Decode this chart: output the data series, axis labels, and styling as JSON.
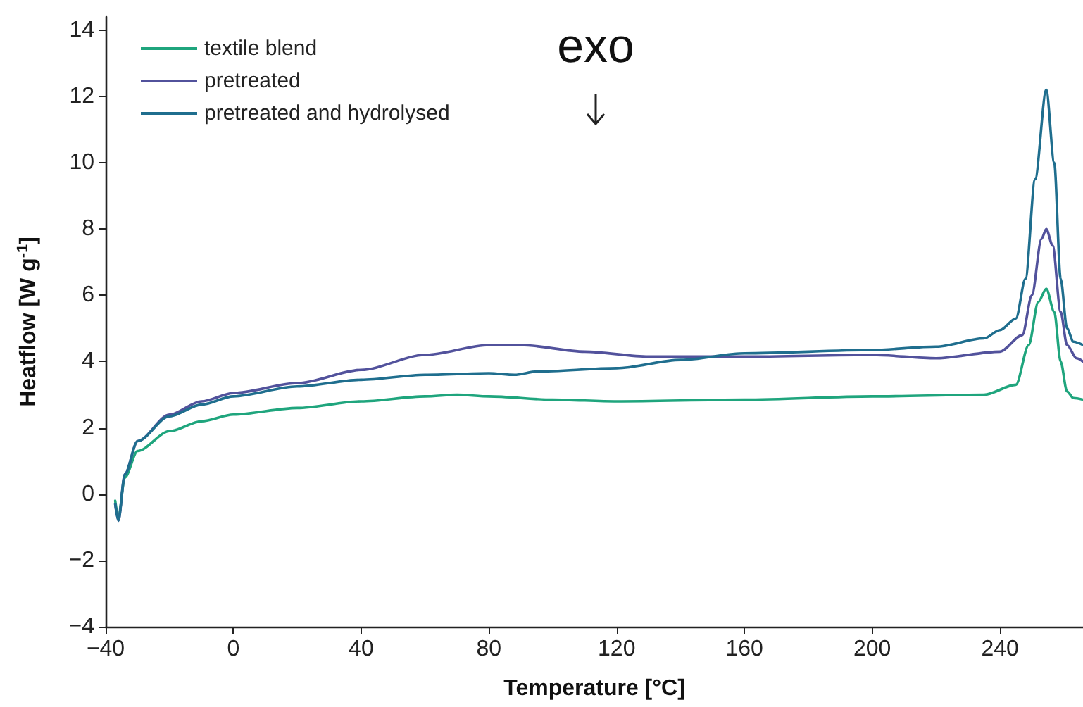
{
  "chart_data": {
    "type": "line",
    "xlabel": "Temperature [°C]",
    "ylabel": "Heatflow [W g$^{-1}$]",
    "annotations": [
      "exo"
    ],
    "xlim": [
      -40,
      266
    ],
    "xticks": [
      -40,
      0,
      40,
      80,
      120,
      160,
      200,
      240
    ],
    "ylim": [
      -4,
      14.4
    ],
    "yticks": [
      -4,
      -2,
      0,
      2,
      4,
      6,
      8,
      10,
      12,
      14
    ],
    "grid": false,
    "legend": "top left",
    "marker": "none",
    "line_style": "solid",
    "series": [
      {
        "name": "textile blend",
        "color": "#1fa57d",
        "x": [
          -37,
          -36,
          -34,
          -30,
          -20,
          -10,
          0,
          20,
          40,
          60,
          70,
          80,
          100,
          120,
          160,
          200,
          235,
          245,
          249,
          252,
          254.5,
          257,
          259,
          261,
          263,
          266
        ],
        "values": [
          -0.2,
          -0.7,
          0.5,
          1.3,
          1.9,
          2.2,
          2.4,
          2.6,
          2.8,
          2.95,
          3.0,
          2.95,
          2.85,
          2.8,
          2.85,
          2.95,
          3.0,
          3.3,
          4.5,
          5.8,
          6.2,
          5.5,
          4.0,
          3.1,
          2.9,
          2.85
        ]
      },
      {
        "name": "pretreated",
        "color": "#52529c",
        "x": [
          -37,
          -36,
          -34,
          -30,
          -20,
          -10,
          0,
          20,
          40,
          60,
          80,
          90,
          110,
          130,
          160,
          200,
          220,
          240,
          247,
          250,
          253,
          254.5,
          256.5,
          259,
          261,
          264,
          266
        ],
        "values": [
          -0.3,
          -0.8,
          0.6,
          1.6,
          2.4,
          2.8,
          3.05,
          3.35,
          3.75,
          4.2,
          4.5,
          4.5,
          4.3,
          4.15,
          4.15,
          4.2,
          4.1,
          4.3,
          4.8,
          6.0,
          7.7,
          8.0,
          7.5,
          5.5,
          4.5,
          4.1,
          4.0
        ]
      },
      {
        "name": "pretreated and hydrolysed",
        "color": "#1f6e8e",
        "x": [
          -37,
          -36,
          -34,
          -30,
          -20,
          -10,
          0,
          20,
          40,
          60,
          80,
          88,
          95,
          120,
          140,
          160,
          200,
          220,
          235,
          240,
          245,
          248,
          251,
          254.5,
          257,
          259,
          261,
          263,
          266
        ],
        "values": [
          -0.3,
          -0.8,
          0.6,
          1.6,
          2.35,
          2.7,
          2.95,
          3.25,
          3.45,
          3.6,
          3.65,
          3.6,
          3.7,
          3.8,
          4.05,
          4.25,
          4.35,
          4.45,
          4.7,
          4.95,
          5.3,
          6.5,
          9.5,
          12.2,
          10,
          6.5,
          5.0,
          4.6,
          4.5
        ]
      }
    ]
  }
}
